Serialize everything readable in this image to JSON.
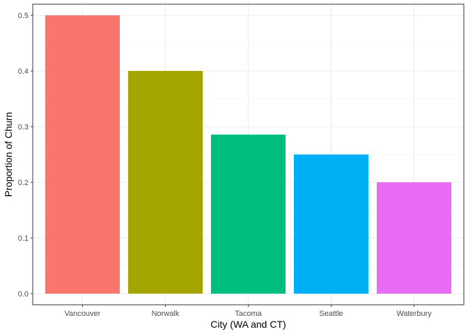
{
  "chart_data": {
    "type": "bar",
    "categories": [
      "Vancouver",
      "Norwalk",
      "Tacoma",
      "Seattle",
      "Waterbury"
    ],
    "values": [
      0.5,
      0.4,
      0.2857,
      0.25,
      0.2
    ],
    "colors": [
      "#F8766D",
      "#A3A500",
      "#00BF7D",
      "#00B0F6",
      "#E76BF3"
    ],
    "xlabel": "City (WA and CT)",
    "ylabel": "Proportion of Churn",
    "ylim": [
      -0.02,
      0.52
    ],
    "yticks": [
      0.0,
      0.1,
      0.2,
      0.3,
      0.4,
      0.5
    ],
    "ytick_labels": [
      "0.0",
      "0.1",
      "0.2",
      "0.3",
      "0.4",
      "0.5"
    ],
    "grid": true,
    "theme": "bw",
    "legend": "none"
  }
}
